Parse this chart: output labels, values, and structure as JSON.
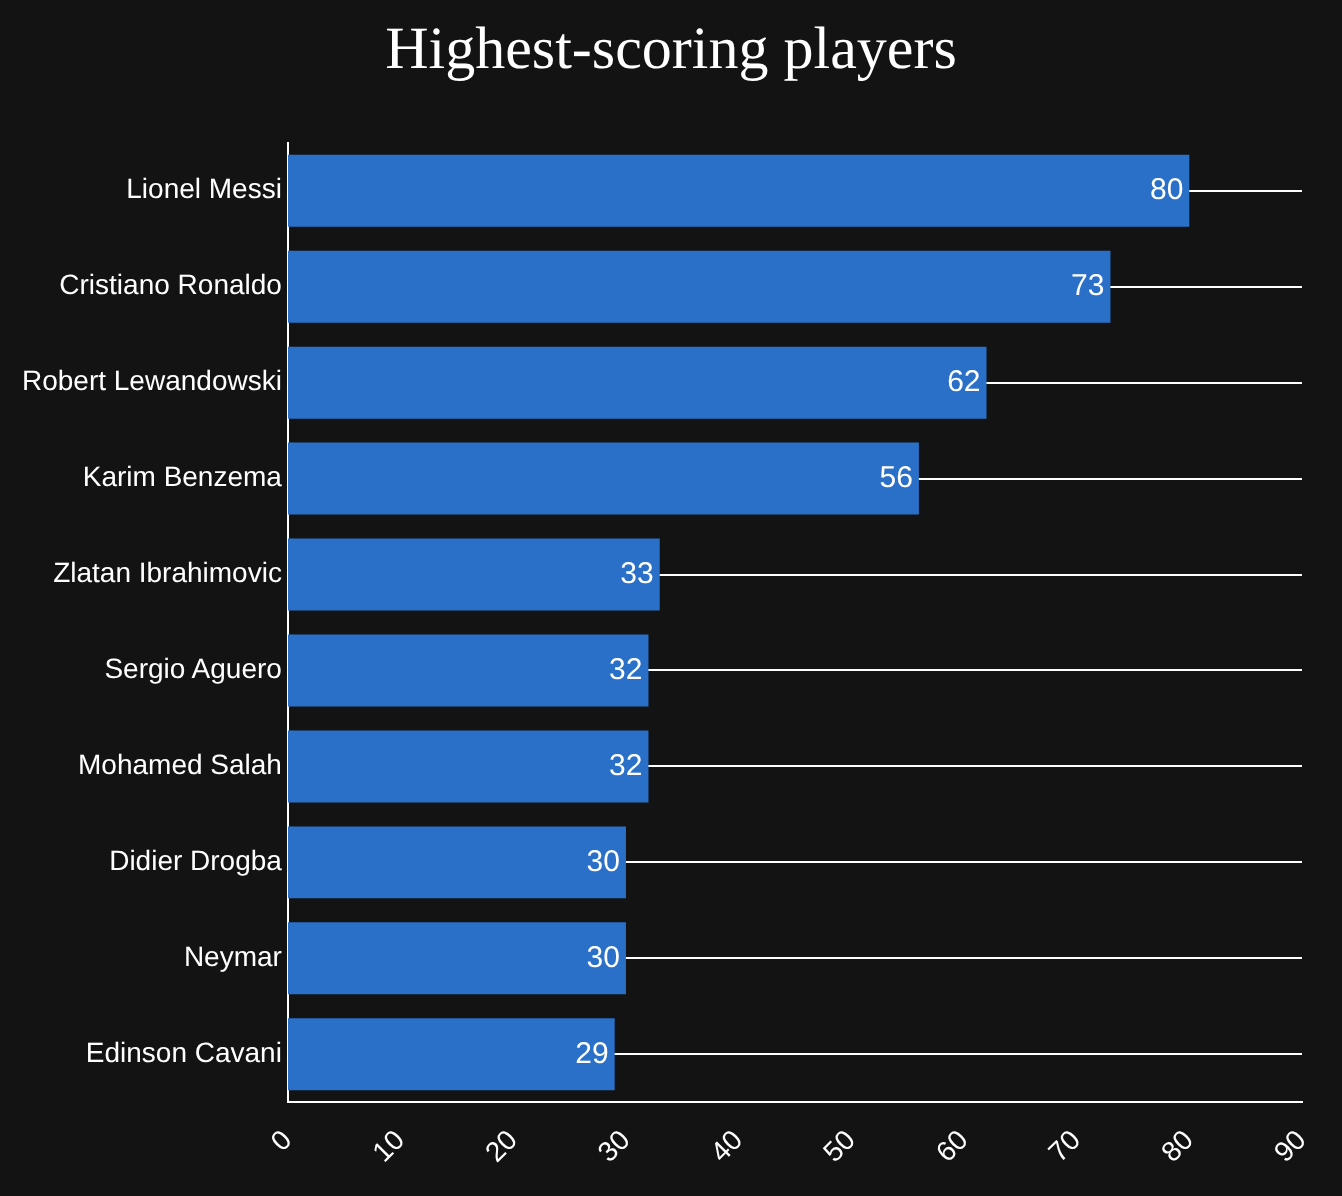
{
  "chart_data": {
    "type": "bar",
    "orientation": "horizontal",
    "title": "Highest-scoring players",
    "categories": [
      "Lionel Messi",
      "Cristiano Ronaldo",
      "Robert Lewandowski",
      "Karim Benzema",
      "Zlatan Ibrahimovic",
      "Sergio Aguero",
      "Mohamed Salah",
      "Didier Drogba",
      "Neymar",
      "Edinson Cavani"
    ],
    "values": [
      80,
      73,
      62,
      56,
      33,
      32,
      32,
      30,
      30,
      29
    ],
    "color": "#2a70c8",
    "xlim": [
      0,
      90
    ],
    "xticks": [
      0,
      10,
      20,
      30,
      40,
      50,
      60,
      70,
      80,
      90
    ],
    "grid": "y",
    "data_labels": true,
    "legend": false
  }
}
